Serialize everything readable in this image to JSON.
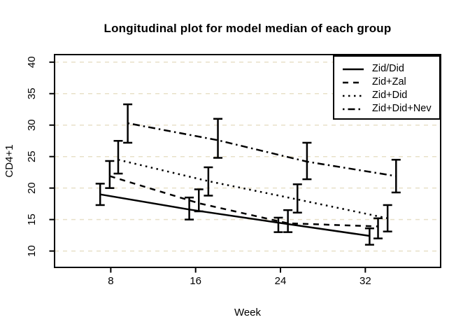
{
  "title": "Longitudinal plot for model median of each group",
  "colors": {
    "foreground": "#000000",
    "background": "#ffffff",
    "gridline": "#e8e0c8"
  },
  "chart_data": {
    "type": "line",
    "title": "Longitudinal plot for model median of each group",
    "xlabel": "Week",
    "ylabel": "CD4+1",
    "xlim": [
      2.7,
      39.1
    ],
    "ylim": [
      7.4,
      41.2
    ],
    "x_ticks": [
      8,
      16,
      24,
      32
    ],
    "y_ticks": [
      10,
      15,
      20,
      25,
      30,
      35,
      40
    ],
    "grid": {
      "axis": "y",
      "style": "dashed",
      "color": "#e8e0c8"
    },
    "legend_position": "topright",
    "error_bars": true,
    "series": [
      {
        "name": "Zid/Did",
        "linestyle": "solid",
        "x": [
          7.0,
          15.4,
          23.8,
          32.4
        ],
        "median": [
          19.0,
          16.6,
          14.5,
          12.4
        ],
        "lower": [
          17.3,
          15.0,
          13.0,
          11.0
        ],
        "upper": [
          20.7,
          18.5,
          15.3,
          13.6
        ]
      },
      {
        "name": "Zid+Zal",
        "linestyle": "dashed",
        "x": [
          7.9,
          16.3,
          24.7,
          33.2
        ],
        "median": [
          21.9,
          17.6,
          14.4,
          13.9
        ],
        "lower": [
          20.0,
          16.3,
          13.0,
          12.0
        ],
        "upper": [
          24.3,
          19.8,
          16.5,
          15.2
        ]
      },
      {
        "name": "Zid+Did",
        "linestyle": "dotted",
        "x": [
          8.7,
          17.2,
          25.6,
          34.1
        ],
        "median": [
          24.5,
          21.1,
          18.2,
          15.2
        ],
        "lower": [
          22.3,
          18.8,
          16.1,
          13.1
        ],
        "upper": [
          27.5,
          23.3,
          20.6,
          17.3
        ]
      },
      {
        "name": "Zid+Did+Nev",
        "linestyle": "dotdash",
        "x": [
          9.6,
          18.1,
          26.5,
          34.9
        ],
        "median": [
          30.3,
          27.6,
          24.2,
          21.9
        ],
        "lower": [
          27.2,
          24.8,
          21.4,
          19.3
        ],
        "upper": [
          33.3,
          31.0,
          27.2,
          24.5
        ]
      }
    ]
  }
}
